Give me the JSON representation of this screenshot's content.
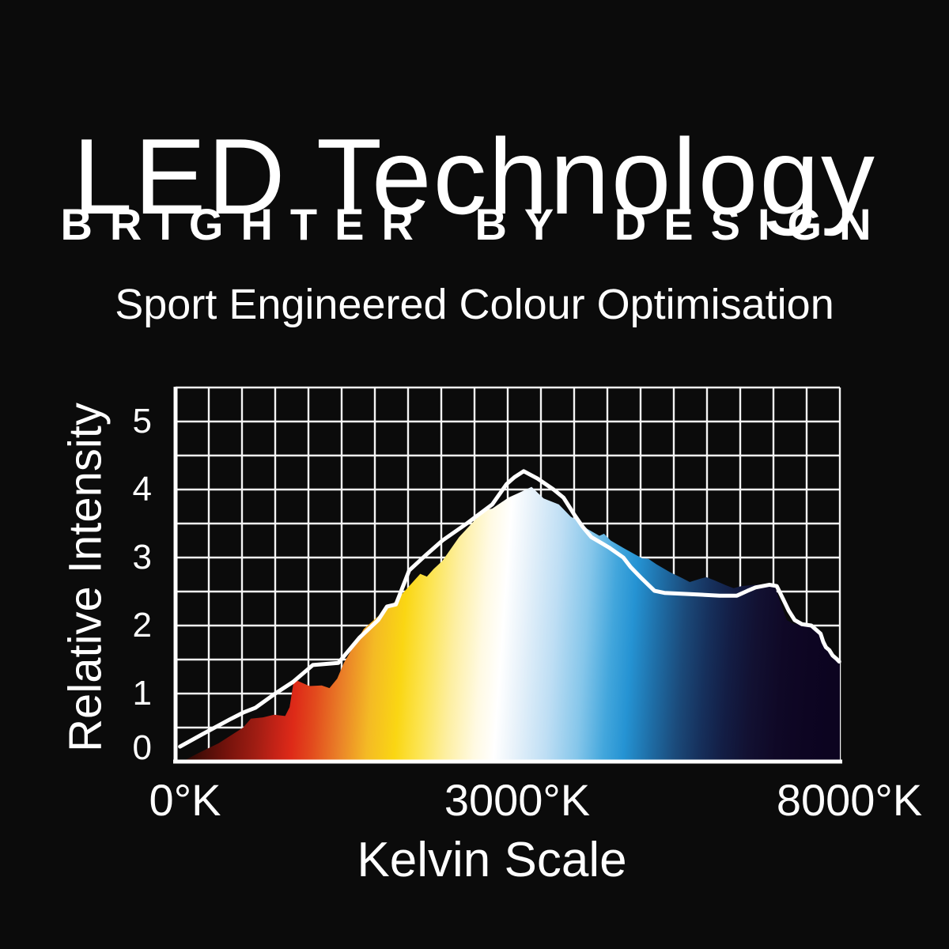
{
  "page": {
    "background_color": "#0b0b0b",
    "text_color": "#ffffff"
  },
  "header": {
    "title": "LED Technology",
    "tagline": "BRIGHTER BY DESIGN",
    "subtitle": "Sport Engineered Colour Optimisation"
  },
  "chart_data": {
    "type": "area",
    "xlabel": "Kelvin Scale",
    "ylabel": "Relative Intensity",
    "x_unit": "°K",
    "ylim": [
      0,
      5.5
    ],
    "y_ticks": [
      0,
      1,
      2,
      3,
      4,
      5
    ],
    "x_ticks": [
      {
        "kelvin": 0,
        "label": "0°K"
      },
      {
        "kelvin": 3000,
        "label": "3000°K"
      },
      {
        "kelvin": 8000,
        "label": "8000°K"
      }
    ],
    "x_scale_note": "piecewise linear: 0-3000K spans left half of axis, 3000-8000K spans right half",
    "grid": {
      "cols": 20,
      "rows": 11,
      "on": true
    },
    "colors": {
      "grid": "#f5f5f5",
      "axis": "#ffffff",
      "line": "#ffffff"
    },
    "series": [
      {
        "name": "spectrum-fill",
        "style": "area-spectrum-gradient",
        "points": [
          [
            60,
            0
          ],
          [
            200,
            0.12
          ],
          [
            390,
            0.27
          ],
          [
            610,
            0.5
          ],
          [
            680,
            0.63
          ],
          [
            790,
            0.65
          ],
          [
            890,
            0.69
          ],
          [
            990,
            0.67
          ],
          [
            1030,
            0.8
          ],
          [
            1070,
            1.21
          ],
          [
            1140,
            1.16
          ],
          [
            1210,
            1.11
          ],
          [
            1320,
            1.12
          ],
          [
            1390,
            1.08
          ],
          [
            1460,
            1.22
          ],
          [
            1520,
            1.45
          ],
          [
            1610,
            1.7
          ],
          [
            1700,
            1.95
          ],
          [
            1840,
            2.15
          ],
          [
            1990,
            2.36
          ],
          [
            2110,
            2.58
          ],
          [
            2210,
            2.76
          ],
          [
            2270,
            2.72
          ],
          [
            2330,
            2.83
          ],
          [
            2410,
            2.95
          ],
          [
            2560,
            3.3
          ],
          [
            2710,
            3.56
          ],
          [
            2800,
            3.7
          ],
          [
            2860,
            3.72
          ],
          [
            3010,
            3.88
          ],
          [
            3210,
            3.97
          ],
          [
            3360,
            4.04
          ],
          [
            3540,
            3.87
          ],
          [
            3770,
            3.78
          ],
          [
            3950,
            3.6
          ],
          [
            4060,
            3.54
          ],
          [
            4200,
            3.42
          ],
          [
            4380,
            3.32
          ],
          [
            4450,
            3.35
          ],
          [
            4550,
            3.25
          ],
          [
            4760,
            3.13
          ],
          [
            5020,
            2.99
          ],
          [
            5120,
            2.98
          ],
          [
            5240,
            2.9
          ],
          [
            5450,
            2.78
          ],
          [
            5620,
            2.7
          ],
          [
            5740,
            2.64
          ],
          [
            5900,
            2.69
          ],
          [
            5990,
            2.71
          ],
          [
            6100,
            2.67
          ],
          [
            6290,
            2.59
          ],
          [
            6400,
            2.55
          ],
          [
            6520,
            2.58
          ],
          [
            6730,
            2.6
          ],
          [
            6930,
            2.61
          ],
          [
            7020,
            2.57
          ],
          [
            7120,
            2.3
          ],
          [
            7200,
            2.08
          ],
          [
            7300,
            2.03
          ],
          [
            7460,
            2.0
          ],
          [
            7570,
            1.97
          ],
          [
            7690,
            1.86
          ],
          [
            7790,
            1.7
          ],
          [
            7870,
            1.6
          ],
          [
            7940,
            1.52
          ],
          [
            8000,
            1.47
          ]
        ]
      },
      {
        "name": "intensity-line",
        "style": "white-line",
        "points": [
          [
            40,
            0.22
          ],
          [
            240,
            0.4
          ],
          [
            490,
            0.62
          ],
          [
            610,
            0.72
          ],
          [
            720,
            0.79
          ],
          [
            900,
            1.0
          ],
          [
            1060,
            1.17
          ],
          [
            1190,
            1.35
          ],
          [
            1240,
            1.42
          ],
          [
            1470,
            1.45
          ],
          [
            1660,
            1.82
          ],
          [
            1830,
            2.08
          ],
          [
            1910,
            2.28
          ],
          [
            1990,
            2.31
          ],
          [
            2110,
            2.81
          ],
          [
            2270,
            3.05
          ],
          [
            2410,
            3.25
          ],
          [
            2630,
            3.5
          ],
          [
            2860,
            3.78
          ],
          [
            2990,
            4.08
          ],
          [
            3100,
            4.18
          ],
          [
            3240,
            4.27
          ],
          [
            3450,
            4.16
          ],
          [
            3690,
            4.0
          ],
          [
            3840,
            3.88
          ],
          [
            4010,
            3.62
          ],
          [
            4130,
            3.45
          ],
          [
            4260,
            3.3
          ],
          [
            4520,
            3.15
          ],
          [
            4740,
            3.0
          ],
          [
            4850,
            2.86
          ],
          [
            5020,
            2.69
          ],
          [
            5210,
            2.51
          ],
          [
            5360,
            2.48
          ],
          [
            5770,
            2.46
          ],
          [
            6190,
            2.44
          ],
          [
            6450,
            2.44
          ],
          [
            6610,
            2.51
          ],
          [
            6730,
            2.56
          ],
          [
            6940,
            2.6
          ],
          [
            7050,
            2.58
          ],
          [
            7140,
            2.4
          ],
          [
            7230,
            2.22
          ],
          [
            7320,
            2.08
          ],
          [
            7430,
            2.02
          ],
          [
            7570,
            2.0
          ],
          [
            7710,
            1.88
          ],
          [
            7750,
            1.76
          ],
          [
            7790,
            1.68
          ],
          [
            7840,
            1.64
          ],
          [
            7890,
            1.56
          ],
          [
            7950,
            1.51
          ],
          [
            7990,
            1.47
          ]
        ]
      }
    ],
    "gradient_stops": [
      {
        "offset": 0.0,
        "color": "#050000"
      },
      {
        "offset": 0.027,
        "color": "#200603"
      },
      {
        "offset": 0.063,
        "color": "#4c0d07"
      },
      {
        "offset": 0.099,
        "color": "#77130c"
      },
      {
        "offset": 0.14,
        "color": "#a01d13"
      },
      {
        "offset": 0.17,
        "color": "#c52317"
      },
      {
        "offset": 0.194,
        "color": "#de2a18"
      },
      {
        "offset": 0.224,
        "color": "#e24a1d"
      },
      {
        "offset": 0.265,
        "color": "#ea8128"
      },
      {
        "offset": 0.307,
        "color": "#f4ba25"
      },
      {
        "offset": 0.349,
        "color": "#fad613"
      },
      {
        "offset": 0.384,
        "color": "#fce450"
      },
      {
        "offset": 0.426,
        "color": "#fdefa2"
      },
      {
        "offset": 0.468,
        "color": "#fffae3"
      },
      {
        "offset": 0.498,
        "color": "#ffffff"
      },
      {
        "offset": 0.527,
        "color": "#e8f2fa"
      },
      {
        "offset": 0.575,
        "color": "#bedef4"
      },
      {
        "offset": 0.622,
        "color": "#85c6ea"
      },
      {
        "offset": 0.662,
        "color": "#42a6dc"
      },
      {
        "offset": 0.692,
        "color": "#2593d3"
      },
      {
        "offset": 0.733,
        "color": "#1e6ba3"
      },
      {
        "offset": 0.769,
        "color": "#1b4a7a"
      },
      {
        "offset": 0.805,
        "color": "#16305c"
      },
      {
        "offset": 0.84,
        "color": "#131d44"
      },
      {
        "offset": 0.876,
        "color": "#121132"
      },
      {
        "offset": 0.92,
        "color": "#0f0826"
      },
      {
        "offset": 0.962,
        "color": "#0d0522"
      },
      {
        "offset": 1.0,
        "color": "#0c0420"
      }
    ]
  }
}
